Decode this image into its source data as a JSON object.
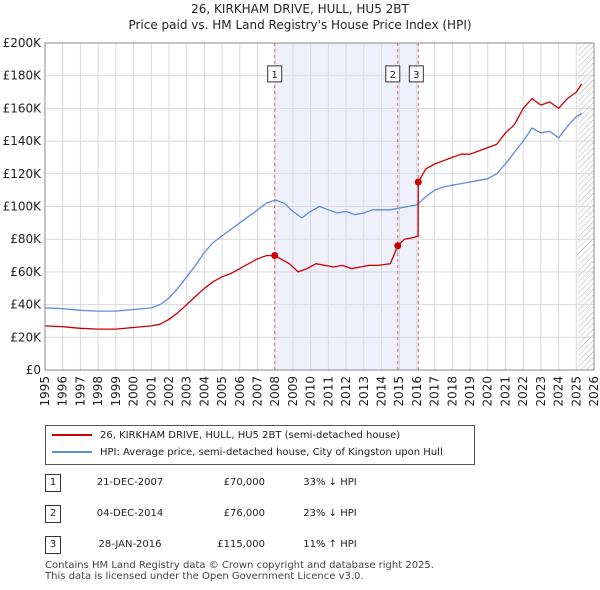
{
  "chart_data": {
    "type": "line",
    "title": "26, KIRKHAM DRIVE, HULL, HU5 2BT",
    "subtitle": "Price paid vs. HM Land Registry's House Price Index (HPI)",
    "xlabel": "",
    "ylabel": "",
    "xlim": [
      1995,
      2026
    ],
    "ylim": [
      0,
      200000
    ],
    "x_ticks": [
      "1995",
      "1996",
      "1997",
      "1998",
      "1999",
      "2000",
      "2001",
      "2002",
      "2003",
      "2004",
      "2005",
      "2006",
      "2007",
      "2008",
      "2009",
      "2010",
      "2011",
      "2012",
      "2013",
      "2014",
      "2015",
      "2016",
      "2017",
      "2018",
      "2019",
      "2020",
      "2021",
      "2022",
      "2023",
      "2024",
      "2025",
      "2026"
    ],
    "y_ticks": [
      {
        "value": 0,
        "label": "£0"
      },
      {
        "value": 20000,
        "label": "£20K"
      },
      {
        "value": 40000,
        "label": "£40K"
      },
      {
        "value": 60000,
        "label": "£60K"
      },
      {
        "value": 80000,
        "label": "£80K"
      },
      {
        "value": 100000,
        "label": "£100K"
      },
      {
        "value": 120000,
        "label": "£120K"
      },
      {
        "value": 140000,
        "label": "£140K"
      },
      {
        "value": 160000,
        "label": "£160K"
      },
      {
        "value": 180000,
        "label": "£180K"
      },
      {
        "value": 200000,
        "label": "£200K"
      }
    ],
    "grid": true,
    "shaded_range": [
      2007.97,
      2016.08
    ],
    "forecast_start": 2025.1,
    "series": [
      {
        "name": "26, KIRKHAM DRIVE, HULL, HU5 2BT (semi-detached house)",
        "color": "#cc0000",
        "x": [
          1995.0,
          1996.0,
          1997.0,
          1998.0,
          1999.0,
          2000.0,
          2001.0,
          2001.5,
          2002.0,
          2002.5,
          2003.0,
          2003.5,
          2004.0,
          2004.5,
          2005.0,
          2005.5,
          2006.0,
          2006.5,
          2007.0,
          2007.5,
          2007.97,
          2008.3,
          2008.8,
          2009.3,
          2009.8,
          2010.3,
          2010.8,
          2011.3,
          2011.8,
          2012.3,
          2012.8,
          2013.3,
          2013.8,
          2014.5,
          2014.92,
          2015.3,
          2015.8,
          2016.07,
          2016.08,
          2016.5,
          2017.0,
          2017.5,
          2018.0,
          2018.5,
          2019.0,
          2019.5,
          2020.0,
          2020.5,
          2021.0,
          2021.5,
          2022.0,
          2022.5,
          2023.0,
          2023.5,
          2024.0,
          2024.5,
          2025.0,
          2025.3
        ],
        "y": [
          27000,
          26500,
          25500,
          25000,
          25000,
          26000,
          27000,
          28000,
          31000,
          35000,
          40000,
          45000,
          50000,
          54000,
          57000,
          59000,
          62000,
          65000,
          68000,
          70000,
          70000,
          68000,
          65000,
          60000,
          62000,
          65000,
          64000,
          63000,
          64000,
          62000,
          63000,
          64000,
          64000,
          65000,
          76000,
          80000,
          81000,
          82000,
          115000,
          123000,
          126000,
          128000,
          130000,
          132000,
          132000,
          134000,
          136000,
          138000,
          145000,
          150000,
          160000,
          166000,
          162000,
          164000,
          160000,
          166000,
          170000,
          175000
        ]
      },
      {
        "name": "HPI: Average price, semi-detached house, City of Kingston upon Hull",
        "color": "#5b8ed6",
        "x": [
          1995.0,
          1996.0,
          1997.0,
          1998.0,
          1999.0,
          2000.0,
          2001.0,
          2001.5,
          2002.0,
          2002.5,
          2003.0,
          2003.5,
          2004.0,
          2004.5,
          2005.0,
          2005.5,
          2006.0,
          2006.5,
          2007.0,
          2007.5,
          2008.0,
          2008.5,
          2009.0,
          2009.5,
          2010.0,
          2010.5,
          2011.0,
          2011.5,
          2012.0,
          2012.5,
          2013.0,
          2013.5,
          2014.0,
          2014.5,
          2015.0,
          2015.5,
          2016.0,
          2016.5,
          2017.0,
          2017.5,
          2018.0,
          2018.5,
          2019.0,
          2019.5,
          2020.0,
          2020.5,
          2021.0,
          2021.5,
          2022.0,
          2022.5,
          2023.0,
          2023.5,
          2024.0,
          2024.5,
          2025.0,
          2025.3
        ],
        "y": [
          38000,
          37500,
          36500,
          36000,
          36000,
          37000,
          38000,
          40000,
          44000,
          50000,
          57000,
          64000,
          72000,
          78000,
          82000,
          86000,
          90000,
          94000,
          98000,
          102000,
          104000,
          102000,
          97000,
          93000,
          97000,
          100000,
          98000,
          96000,
          97000,
          95000,
          96000,
          98000,
          98000,
          98000,
          99000,
          100000,
          101000,
          106000,
          110000,
          112000,
          113000,
          114000,
          115000,
          116000,
          117000,
          120000,
          126000,
          133000,
          140000,
          148000,
          145000,
          146000,
          142000,
          149000,
          155000,
          157000
        ]
      }
    ],
    "sales": [
      {
        "label": "1",
        "date": "21-DEC-2007",
        "x": 2007.97,
        "price": 70000,
        "price_text": "£70,000",
        "hpi_text": "33% ↓ HPI"
      },
      {
        "label": "2",
        "date": "04-DEC-2014",
        "x": 2014.92,
        "price": 76000,
        "price_text": "£76,000",
        "hpi_text": "23% ↓ HPI"
      },
      {
        "label": "3",
        "date": "28-JAN-2016",
        "x": 2016.08,
        "price": 115000,
        "price_text": "£115,000",
        "hpi_text": "11% ↑ HPI"
      }
    ]
  },
  "footer": {
    "line1": "Contains HM Land Registry data © Crown copyright and database right 2025.",
    "line2": "This data is licensed under the Open Government Licence v3.0."
  }
}
